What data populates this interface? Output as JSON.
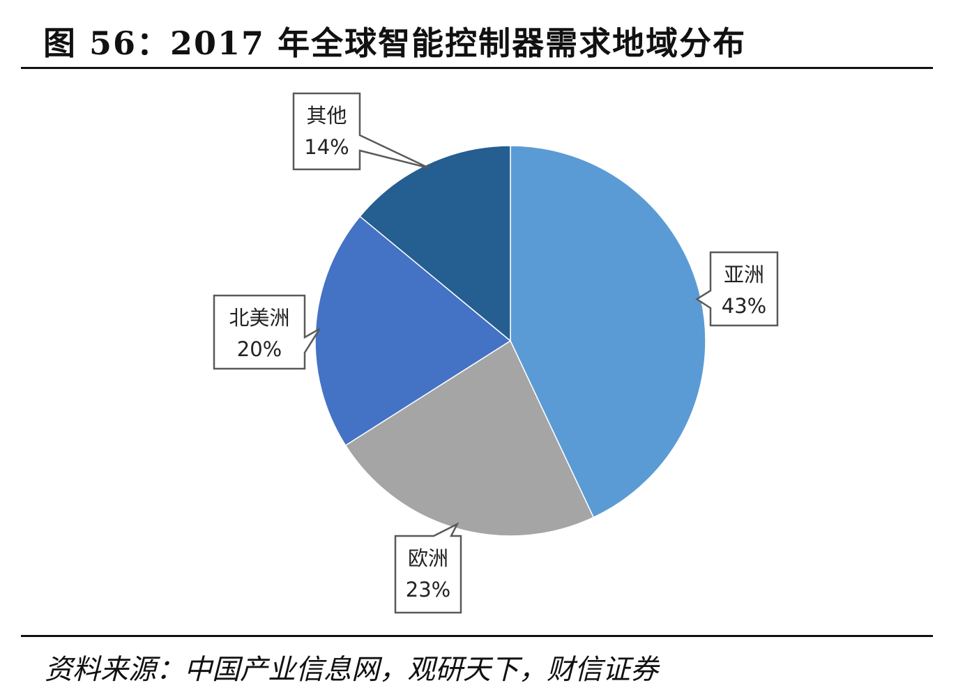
{
  "figure": {
    "title": "图 56：2017 年全球智能控制器需求地域分布",
    "source": "资料来源：中国产业信息网，观研天下，财信证券"
  },
  "chart_data": {
    "type": "pie",
    "title": "图 56：2017 年全球智能控制器需求地域分布",
    "start_angle_deg": 0,
    "direction": "clockwise",
    "slices": [
      {
        "label": "亚洲",
        "value": 43,
        "value_label": "43%",
        "color": "#5b9bd5"
      },
      {
        "label": "欧洲",
        "value": 23,
        "value_label": "23%",
        "color": "#a5a5a5"
      },
      {
        "label": "北美洲",
        "value": 20,
        "value_label": "20%",
        "color": "#4472c4"
      },
      {
        "label": "其他",
        "value": 14,
        "value_label": "14%",
        "color": "#255e91"
      }
    ],
    "legend": "none",
    "data_labels": "callouts"
  }
}
